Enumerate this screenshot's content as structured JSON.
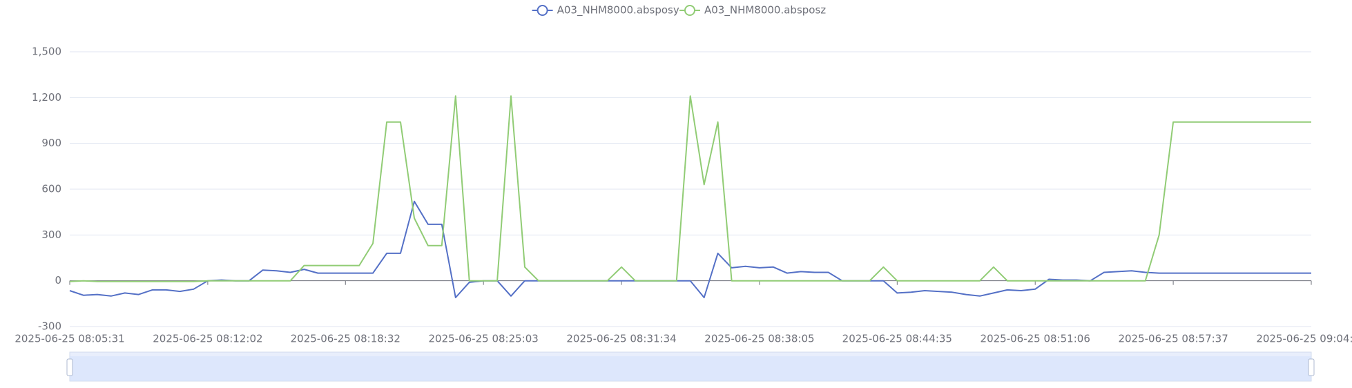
{
  "chart_data": {
    "type": "line",
    "x": [
      "2025-06-25 08:05:31",
      "2025-06-25 08:06:10",
      "2025-06-25 08:06:49",
      "2025-06-25 08:07:28",
      "2025-06-25 08:08:07",
      "2025-06-25 08:08:46",
      "2025-06-25 08:09:25",
      "2025-06-25 08:10:04",
      "2025-06-25 08:10:43",
      "2025-06-25 08:11:22",
      "2025-06-25 08:12:02",
      "2025-06-25 08:12:41",
      "2025-06-25 08:13:20",
      "2025-06-25 08:13:59",
      "2025-06-25 08:14:38",
      "2025-06-25 08:15:17",
      "2025-06-25 08:15:56",
      "2025-06-25 08:16:35",
      "2025-06-25 08:17:14",
      "2025-06-25 08:17:53",
      "2025-06-25 08:18:32",
      "2025-06-25 08:19:11",
      "2025-06-25 08:19:50",
      "2025-06-25 08:20:29",
      "2025-06-25 08:21:08",
      "2025-06-25 08:21:47",
      "2025-06-25 08:22:26",
      "2025-06-25 08:23:05",
      "2025-06-25 08:23:44",
      "2025-06-25 08:24:23",
      "2025-06-25 08:25:03",
      "2025-06-25 08:25:42",
      "2025-06-25 08:26:21",
      "2025-06-25 08:27:00",
      "2025-06-25 08:27:39",
      "2025-06-25 08:28:18",
      "2025-06-25 08:28:57",
      "2025-06-25 08:29:36",
      "2025-06-25 08:30:15",
      "2025-06-25 08:30:54",
      "2025-06-25 08:31:34",
      "2025-06-25 08:32:13",
      "2025-06-25 08:32:52",
      "2025-06-25 08:33:31",
      "2025-06-25 08:34:10",
      "2025-06-25 08:34:49",
      "2025-06-25 08:35:28",
      "2025-06-25 08:36:07",
      "2025-06-25 08:36:46",
      "2025-06-25 08:37:25",
      "2025-06-25 08:38:05",
      "2025-06-25 08:38:44",
      "2025-06-25 08:39:23",
      "2025-06-25 08:40:02",
      "2025-06-25 08:40:41",
      "2025-06-25 08:41:20",
      "2025-06-25 08:41:59",
      "2025-06-25 08:42:38",
      "2025-06-25 08:43:17",
      "2025-06-25 08:43:56",
      "2025-06-25 08:44:35",
      "2025-06-25 08:45:14",
      "2025-06-25 08:45:53",
      "2025-06-25 08:46:32",
      "2025-06-25 08:47:11",
      "2025-06-25 08:47:50",
      "2025-06-25 08:48:29",
      "2025-06-25 08:49:08",
      "2025-06-25 08:49:47",
      "2025-06-25 08:50:26",
      "2025-06-25 08:51:06",
      "2025-06-25 08:51:45",
      "2025-06-25 08:52:24",
      "2025-06-25 08:53:03",
      "2025-06-25 08:53:42",
      "2025-06-25 08:54:21",
      "2025-06-25 08:55:00",
      "2025-06-25 08:55:39",
      "2025-06-25 08:56:18",
      "2025-06-25 08:56:57",
      "2025-06-25 08:57:37",
      "2025-06-25 08:58:16",
      "2025-06-25 08:58:55",
      "2025-06-25 08:59:34",
      "2025-06-25 09:00:13",
      "2025-06-25 09:00:52",
      "2025-06-25 09:01:31",
      "2025-06-25 09:02:10",
      "2025-06-25 09:02:49",
      "2025-06-25 09:03:28",
      "2025-06-25 09:04:08"
    ],
    "series": [
      {
        "name": "A03_NHM8000.absposy",
        "color": "#5470c6",
        "values": [
          -65,
          -95,
          -90,
          -100,
          -80,
          -90,
          -60,
          -60,
          -70,
          -55,
          0,
          5,
          0,
          0,
          70,
          65,
          55,
          75,
          50,
          50,
          50,
          50,
          50,
          180,
          180,
          520,
          370,
          370,
          -110,
          -10,
          0,
          0,
          -100,
          0,
          0,
          0,
          0,
          0,
          0,
          0,
          0,
          0,
          0,
          0,
          0,
          0,
          -110,
          180,
          85,
          95,
          85,
          90,
          50,
          60,
          55,
          55,
          0,
          0,
          0,
          0,
          -80,
          -75,
          -65,
          -70,
          -75,
          -90,
          -100,
          -80,
          -60,
          -65,
          -55,
          10,
          5,
          5,
          0,
          55,
          60,
          65,
          55,
          50,
          50,
          50,
          50,
          50,
          50,
          50,
          50,
          50,
          50,
          50,
          50
        ]
      },
      {
        "name": "A03_NHM8000.absposz",
        "color": "#91cc75",
        "values": [
          -5,
          0,
          -5,
          -5,
          -5,
          -5,
          -5,
          -5,
          -5,
          -5,
          0,
          0,
          0,
          0,
          0,
          0,
          0,
          100,
          100,
          100,
          100,
          100,
          245,
          1040,
          1040,
          410,
          230,
          230,
          1210,
          0,
          0,
          0,
          1210,
          90,
          0,
          0,
          0,
          0,
          0,
          0,
          90,
          0,
          0,
          0,
          0,
          1210,
          630,
          1040,
          0,
          0,
          0,
          0,
          0,
          0,
          0,
          0,
          0,
          0,
          0,
          90,
          0,
          0,
          0,
          0,
          0,
          0,
          0,
          90,
          0,
          0,
          0,
          0,
          0,
          0,
          0,
          0,
          0,
          0,
          0,
          300,
          1040,
          1040,
          1040,
          1040,
          1040,
          1040,
          1040,
          1040,
          1040,
          1040,
          1040
        ]
      }
    ],
    "xlim": [
      "2025-06-25 08:05:31",
      "2025-06-25 09:04:08"
    ],
    "xticks": [
      "2025-06-25 08:05:31",
      "2025-06-25 08:12:02",
      "2025-06-25 08:18:32",
      "2025-06-25 08:25:03",
      "2025-06-25 08:31:34",
      "2025-06-25 08:38:05",
      "2025-06-25 08:44:35",
      "2025-06-25 08:51:06",
      "2025-06-25 08:57:37",
      "2025-06-25 09:04:08"
    ],
    "ylim": [
      -300,
      1500
    ],
    "yticks": [
      -300,
      0,
      300,
      600,
      900,
      {
        "value": 1200,
        "label": "1,200"
      },
      {
        "value": 1500,
        "label": "1,500"
      }
    ],
    "grid": true,
    "legend": "top"
  }
}
